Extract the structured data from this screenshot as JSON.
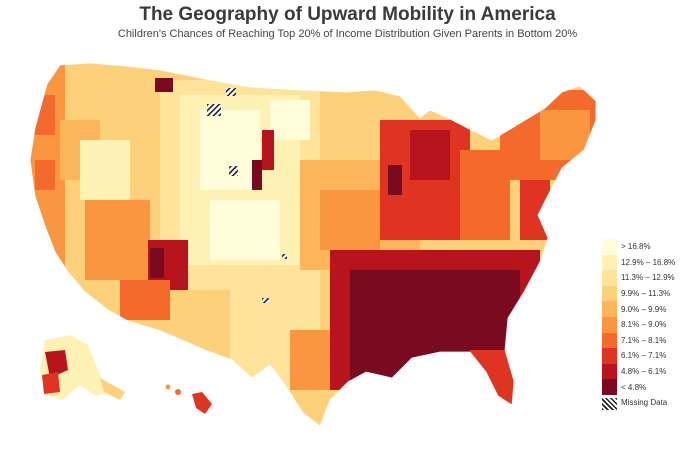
{
  "title": "The Geography of Upward Mobility in America",
  "subtitle": "Children's Chances of Reaching Top 20% of Income Distribution Given Parents in Bottom 20%",
  "legend": {
    "items": [
      {
        "label": "> 16.8%",
        "color": "#fefcd9"
      },
      {
        "label": "12.9% – 16.8%",
        "color": "#fdf1b4"
      },
      {
        "label": "11.3% – 12.9%",
        "color": "#fde49a"
      },
      {
        "label": "9.9% – 11.3%",
        "color": "#fdd07a"
      },
      {
        "label": "9.0% – 9.9%",
        "color": "#fdb55c"
      },
      {
        "label": "8.1% – 9.0%",
        "color": "#fb9640"
      },
      {
        "label": "7.1% – 8.1%",
        "color": "#f46a2c"
      },
      {
        "label": "6.1% – 7.1%",
        "color": "#e03422"
      },
      {
        "label": "4.8% – 6.1%",
        "color": "#b8141e"
      },
      {
        "label": "< 4.8%",
        "color": "#7a0a20"
      }
    ],
    "missing_label": "Missing Data"
  }
}
